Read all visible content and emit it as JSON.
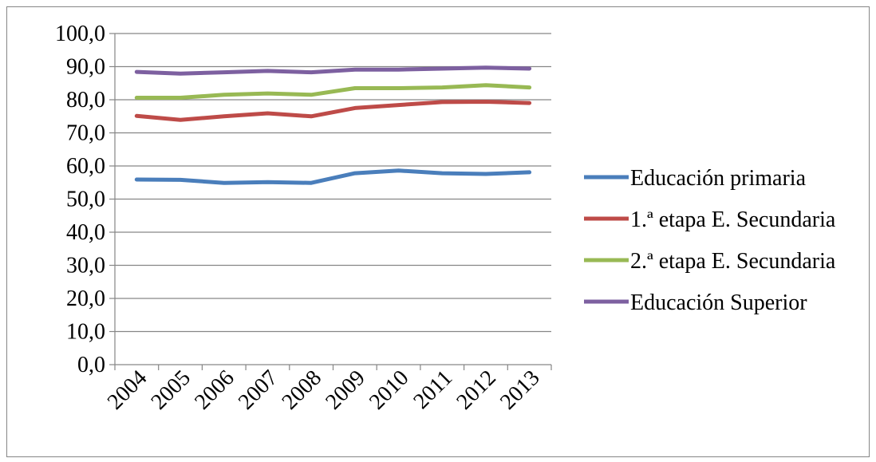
{
  "chart_data": {
    "type": "line",
    "title": "",
    "xlabel": "",
    "ylabel": "",
    "categories": [
      "2004",
      "2005",
      "2006",
      "2007",
      "2008",
      "2009",
      "2010",
      "2011",
      "2012",
      "2013"
    ],
    "ylim": [
      0,
      100
    ],
    "y_ticks": [
      "0,0",
      "10,0",
      "20,0",
      "30,0",
      "40,0",
      "50,0",
      "60,0",
      "70,0",
      "80,0",
      "90,0",
      "100,0"
    ],
    "grid": true,
    "legend_position": "right",
    "series": [
      {
        "name": "Educación primaria",
        "color": "#4A7EBB",
        "values": [
          55.9,
          55.8,
          54.9,
          55.1,
          54.9,
          57.8,
          58.6,
          57.8,
          57.6,
          58.1
        ]
      },
      {
        "name": "1.ª etapa E. Secundaria",
        "color": "#BE4B48",
        "values": [
          75.1,
          73.9,
          75.0,
          75.9,
          75.0,
          77.5,
          78.4,
          79.3,
          79.4,
          79.0
        ]
      },
      {
        "name": "2.ª etapa E. Secundaria",
        "color": "#98B954",
        "values": [
          80.6,
          80.6,
          81.5,
          81.9,
          81.5,
          83.5,
          83.5,
          83.7,
          84.4,
          83.7
        ]
      },
      {
        "name": "Educación Superior",
        "color": "#7D60A0",
        "values": [
          88.4,
          87.9,
          88.3,
          88.7,
          88.3,
          89.1,
          89.1,
          89.4,
          89.7,
          89.4
        ]
      }
    ]
  }
}
